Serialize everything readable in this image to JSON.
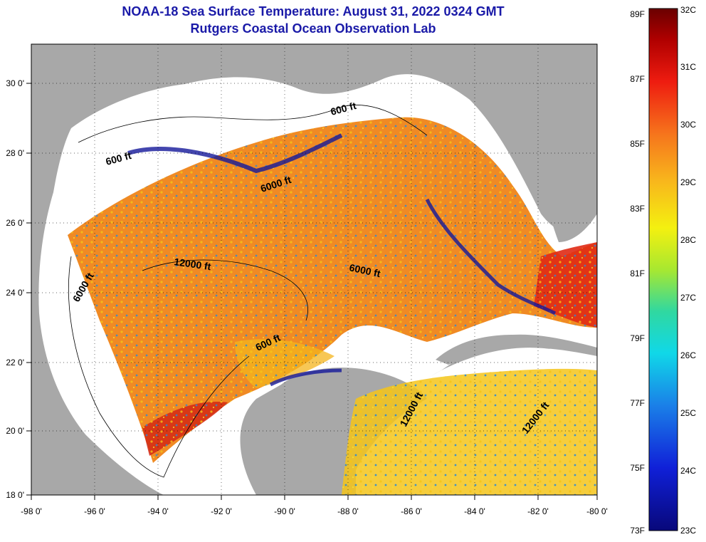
{
  "title_line1": "NOAA-18 Sea Surface Temperature:  August 31, 2022 0324 GMT",
  "title_line2": "Rutgers Coastal Ocean Observation Lab",
  "map": {
    "x_ticks": [
      "-98 0'",
      "-96 0'",
      "-94 0'",
      "-92 0'",
      "-90 0'",
      "-88 0'",
      "-86 0'",
      "-84 0'",
      "-82 0'",
      "-80 0'"
    ],
    "y_ticks": [
      "30 0'",
      "28 0'",
      "26 0'",
      "24 0'",
      "22 0'",
      "20 0'",
      "18 0'"
    ],
    "contour_labels": [
      "600 ft",
      "600 ft",
      "6000 ft",
      "12000 ft",
      "6000 ft",
      "6000 ft",
      "600 ft",
      "12000 ft",
      "12000 ft"
    ],
    "colors": {
      "land": "#a8a8a8",
      "cloud": "#ffffff",
      "warm": "#f07a1c",
      "hot": "#d42010",
      "mid": "#f4c41a",
      "cool": "#2a8ad8",
      "cold": "#14189a"
    }
  },
  "colorbar": {
    "f_labels": [
      "89F",
      "87F",
      "85F",
      "83F",
      "81F",
      "79F",
      "77F",
      "75F",
      "73F"
    ],
    "c_labels": [
      "32C",
      "31C",
      "30C",
      "29C",
      "28C",
      "27C",
      "26C",
      "25C",
      "24C",
      "23C"
    ]
  }
}
